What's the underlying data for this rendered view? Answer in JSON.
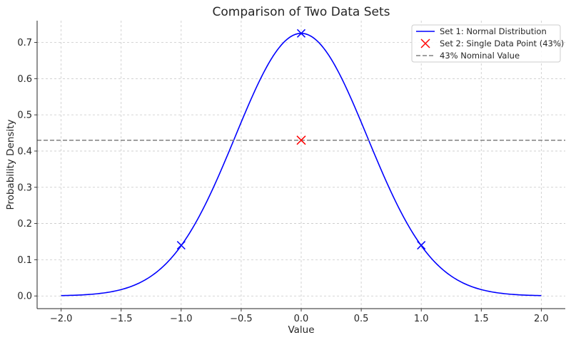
{
  "chart_data": {
    "type": "line",
    "title": "Comparison of Two Data Sets",
    "xlabel": "Value",
    "ylabel": "Probability Density",
    "xlim": [
      -2.2,
      2.2
    ],
    "ylim": [
      -0.035,
      0.76
    ],
    "xticks": [
      -2.0,
      -1.5,
      -1.0,
      -0.5,
      0.0,
      0.5,
      1.0,
      1.5,
      2.0
    ],
    "xtick_labels": [
      "−2.0",
      "−1.5",
      "−1.0",
      "−0.5",
      "0.0",
      "0.5",
      "1.0",
      "1.5",
      "2.0"
    ],
    "yticks": [
      0.0,
      0.1,
      0.2,
      0.3,
      0.4,
      0.5,
      0.6,
      0.7
    ],
    "ytick_labels": [
      "0.0",
      "0.1",
      "0.2",
      "0.3",
      "0.4",
      "0.5",
      "0.6",
      "0.7"
    ],
    "grid": true,
    "legend_position": "top-right",
    "series": [
      {
        "name": "Set 1: Normal Distribution",
        "kind": "curve",
        "distribution": "gaussian",
        "mean": 0,
        "sigma": 0.55,
        "peak": 0.725,
        "x_range": [
          -2.0,
          2.0
        ],
        "color": "#0000ff",
        "markers": [
          {
            "x": -1.0,
            "y": 0.14
          },
          {
            "x": 0.0,
            "y": 0.725
          },
          {
            "x": 1.0,
            "y": 0.14
          }
        ]
      },
      {
        "name": "Set 2: Single Data Point (43%)",
        "kind": "scatter",
        "points": [
          {
            "x": 0.0,
            "y": 0.43
          }
        ],
        "color": "#ff0000"
      },
      {
        "name": "43% Nominal Value",
        "kind": "hline",
        "y": 0.43,
        "color": "#808080"
      }
    ]
  }
}
